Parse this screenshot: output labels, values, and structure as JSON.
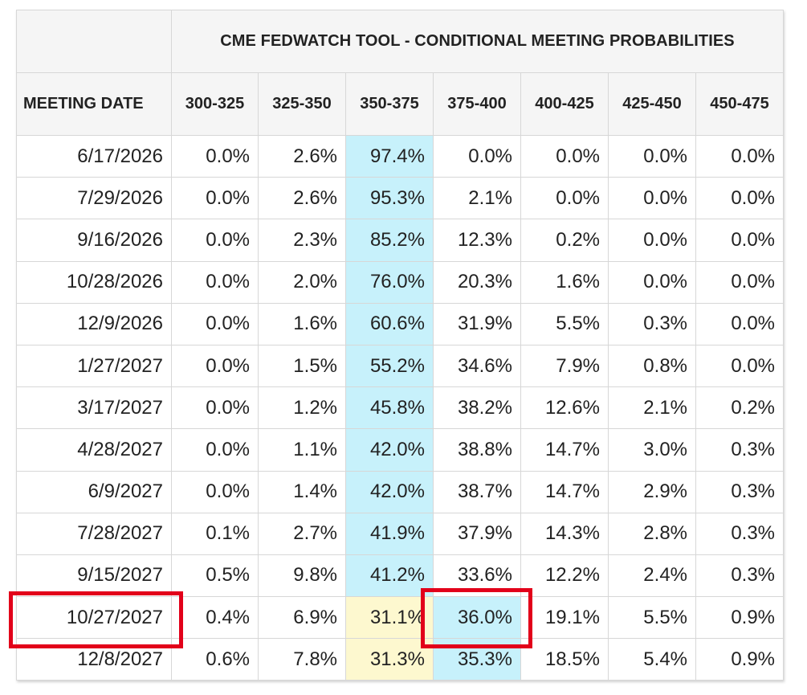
{
  "chart_data": {
    "type": "table",
    "title": "CME FEDWATCH TOOL - CONDITIONAL MEETING PROBABILITIES",
    "row_header": "MEETING DATE",
    "columns": [
      "300-325",
      "325-350",
      "350-375",
      "375-400",
      "400-425",
      "425-450",
      "450-475"
    ],
    "rows": [
      {
        "date": "6/17/2026",
        "values": [
          "0.0%",
          "2.6%",
          "97.4%",
          "0.0%",
          "0.0%",
          "0.0%",
          "0.0%"
        ],
        "highlight": [
          2
        ],
        "highlight_color": [
          "blue"
        ]
      },
      {
        "date": "7/29/2026",
        "values": [
          "0.0%",
          "2.6%",
          "95.3%",
          "2.1%",
          "0.0%",
          "0.0%",
          "0.0%"
        ],
        "highlight": [
          2
        ],
        "highlight_color": [
          "blue"
        ]
      },
      {
        "date": "9/16/2026",
        "values": [
          "0.0%",
          "2.3%",
          "85.2%",
          "12.3%",
          "0.2%",
          "0.0%",
          "0.0%"
        ],
        "highlight": [
          2
        ],
        "highlight_color": [
          "blue"
        ]
      },
      {
        "date": "10/28/2026",
        "values": [
          "0.0%",
          "2.0%",
          "76.0%",
          "20.3%",
          "1.6%",
          "0.0%",
          "0.0%"
        ],
        "highlight": [
          2
        ],
        "highlight_color": [
          "blue"
        ]
      },
      {
        "date": "12/9/2026",
        "values": [
          "0.0%",
          "1.6%",
          "60.6%",
          "31.9%",
          "5.5%",
          "0.3%",
          "0.0%"
        ],
        "highlight": [
          2
        ],
        "highlight_color": [
          "blue"
        ]
      },
      {
        "date": "1/27/2027",
        "values": [
          "0.0%",
          "1.5%",
          "55.2%",
          "34.6%",
          "7.9%",
          "0.8%",
          "0.0%"
        ],
        "highlight": [
          2
        ],
        "highlight_color": [
          "blue"
        ]
      },
      {
        "date": "3/17/2027",
        "values": [
          "0.0%",
          "1.2%",
          "45.8%",
          "38.2%",
          "12.6%",
          "2.1%",
          "0.2%"
        ],
        "highlight": [
          2
        ],
        "highlight_color": [
          "blue"
        ]
      },
      {
        "date": "4/28/2027",
        "values": [
          "0.0%",
          "1.1%",
          "42.0%",
          "38.8%",
          "14.7%",
          "3.0%",
          "0.3%"
        ],
        "highlight": [
          2
        ],
        "highlight_color": [
          "blue"
        ]
      },
      {
        "date": "6/9/2027",
        "values": [
          "0.0%",
          "1.4%",
          "42.0%",
          "38.7%",
          "14.7%",
          "2.9%",
          "0.3%"
        ],
        "highlight": [
          2
        ],
        "highlight_color": [
          "blue"
        ]
      },
      {
        "date": "7/28/2027",
        "values": [
          "0.1%",
          "2.7%",
          "41.9%",
          "37.9%",
          "14.3%",
          "2.8%",
          "0.3%"
        ],
        "highlight": [
          2
        ],
        "highlight_color": [
          "blue"
        ]
      },
      {
        "date": "9/15/2027",
        "values": [
          "0.5%",
          "9.8%",
          "41.2%",
          "33.6%",
          "12.2%",
          "2.4%",
          "0.3%"
        ],
        "highlight": [
          2
        ],
        "highlight_color": [
          "blue"
        ]
      },
      {
        "date": "10/27/2027",
        "values": [
          "0.4%",
          "6.9%",
          "31.1%",
          "36.0%",
          "19.1%",
          "5.5%",
          "0.9%"
        ],
        "highlight": [
          2,
          3
        ],
        "highlight_color": [
          "yellow",
          "blue"
        ]
      },
      {
        "date": "12/8/2027",
        "values": [
          "0.6%",
          "7.8%",
          "31.3%",
          "35.3%",
          "18.5%",
          "5.4%",
          "0.9%"
        ],
        "highlight": [
          2,
          3
        ],
        "highlight_color": [
          "yellow",
          "blue"
        ]
      }
    ],
    "annotations": [
      {
        "type": "red-box",
        "row": "10/27/2027",
        "target": "date"
      },
      {
        "type": "red-box",
        "row": "10/27/2027",
        "target": "375-400"
      }
    ]
  },
  "colors": {
    "highlight_blue": "#c7f1fb",
    "highlight_yellow": "#fdf8cf",
    "header_bg": "#f5f5f5",
    "annotation_red": "#e2001a",
    "border": "#d7d7d7"
  }
}
